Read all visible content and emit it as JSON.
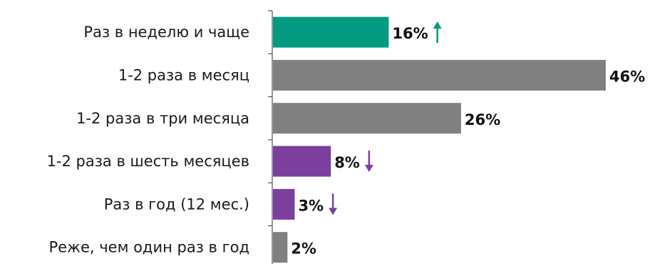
{
  "chart_data": {
    "type": "bar",
    "orientation": "horizontal",
    "categories": [
      "Раз в неделю и чаще",
      "1-2 раза в месяц",
      "1-2 раза в три месяца",
      "1-2 раза в шесть месяцев",
      "Раз в год (12 мес.)",
      "Реже, чем один раз в год"
    ],
    "values": [
      16,
      46,
      26,
      8,
      3,
      2
    ],
    "value_labels": [
      "16%",
      "46%",
      "26%",
      "8%",
      "3%",
      "2%"
    ],
    "bar_colors": [
      "#009B80",
      "#808080",
      "#808080",
      "#7B3F9E",
      "#7B3F9E",
      "#808080"
    ],
    "trend": [
      "up",
      null,
      null,
      "down",
      "down",
      null
    ],
    "trend_colors": {
      "up": "#009B80",
      "down": "#7B3F9E"
    },
    "title": "",
    "xlabel": "",
    "ylabel": "",
    "xlim": [
      0,
      50
    ],
    "grid": false,
    "legend": "none"
  }
}
